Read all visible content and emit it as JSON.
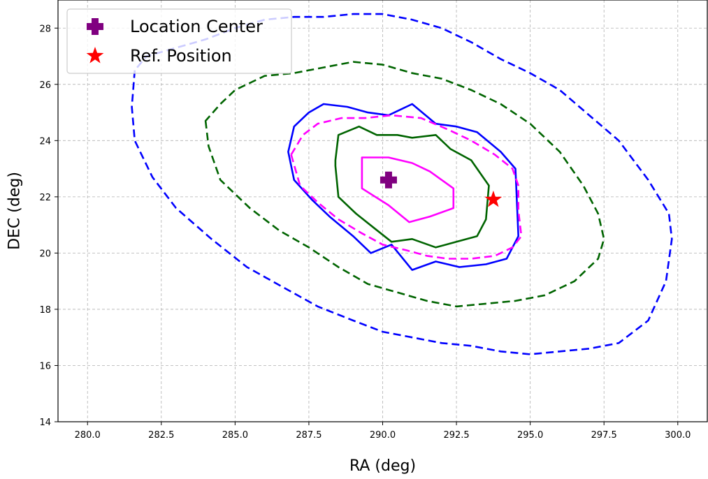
{
  "chart_data": {
    "type": "contour",
    "xlabel": "RA (deg)",
    "ylabel": "DEC (deg)",
    "xlim": [
      279.0,
      301.0
    ],
    "ylim": [
      14,
      29
    ],
    "x_ticks": [
      "280.0",
      "282.5",
      "285.0",
      "287.5",
      "290.0",
      "292.5",
      "295.0",
      "297.5",
      "300.0"
    ],
    "y_ticks": [
      "14",
      "16",
      "18",
      "20",
      "22",
      "24",
      "26",
      "28"
    ],
    "grid": true,
    "legend": {
      "placement": "top-left",
      "entries": [
        {
          "label": "Location Center",
          "marker": "plus",
          "color": "#800080"
        },
        {
          "label": "Ref. Position",
          "marker": "star",
          "color": "#ff0000"
        }
      ]
    },
    "points": [
      {
        "name": "location-center",
        "label": "Location Center",
        "marker": "plus",
        "color": "#800080",
        "x": 290.2,
        "y": 22.6
      },
      {
        "name": "ref-position",
        "label": "Ref. Position",
        "marker": "star",
        "color": "#ff0000",
        "x": 293.75,
        "y": 21.9
      }
    ],
    "contours": [
      {
        "name": "blue-dashed",
        "color": "#0000ff",
        "style": "dashed",
        "points": [
          [
            281.6,
            26.5
          ],
          [
            281.5,
            25.2
          ],
          [
            281.6,
            24.0
          ],
          [
            282.2,
            22.7
          ],
          [
            283.0,
            21.6
          ],
          [
            284.2,
            20.5
          ],
          [
            285.4,
            19.5
          ],
          [
            286.6,
            18.8
          ],
          [
            287.8,
            18.1
          ],
          [
            289.0,
            17.6
          ],
          [
            290.0,
            17.2
          ],
          [
            291.0,
            17.0
          ],
          [
            292.0,
            16.8
          ],
          [
            293.0,
            16.7
          ],
          [
            294.0,
            16.5
          ],
          [
            295.0,
            16.4
          ],
          [
            296.0,
            16.5
          ],
          [
            297.0,
            16.6
          ],
          [
            298.0,
            16.8
          ],
          [
            299.0,
            17.6
          ],
          [
            299.6,
            19.0
          ],
          [
            299.8,
            20.5
          ],
          [
            299.7,
            21.4
          ],
          [
            299.0,
            22.6
          ],
          [
            298.0,
            24.0
          ],
          [
            297.0,
            24.9
          ],
          [
            296.0,
            25.8
          ],
          [
            295.0,
            26.4
          ],
          [
            294.0,
            26.9
          ],
          [
            293.0,
            27.5
          ],
          [
            292.0,
            28.0
          ],
          [
            291.0,
            28.3
          ],
          [
            290.0,
            28.5
          ],
          [
            289.0,
            28.5
          ],
          [
            288.0,
            28.4
          ],
          [
            287.0,
            28.4
          ],
          [
            286.0,
            28.3
          ],
          [
            285.0,
            28.0
          ],
          [
            284.0,
            27.6
          ],
          [
            283.0,
            27.3
          ],
          [
            282.0,
            27.0
          ]
        ]
      },
      {
        "name": "green-dashed",
        "color": "#006400",
        "style": "dashed",
        "points": [
          [
            284.0,
            24.7
          ],
          [
            284.1,
            23.8
          ],
          [
            284.5,
            22.6
          ],
          [
            285.5,
            21.6
          ],
          [
            286.5,
            20.8
          ],
          [
            287.5,
            20.2
          ],
          [
            288.5,
            19.5
          ],
          [
            289.5,
            18.9
          ],
          [
            290.5,
            18.6
          ],
          [
            291.5,
            18.3
          ],
          [
            292.5,
            18.1
          ],
          [
            293.5,
            18.2
          ],
          [
            294.5,
            18.3
          ],
          [
            295.5,
            18.5
          ],
          [
            296.5,
            19.0
          ],
          [
            297.3,
            19.8
          ],
          [
            297.5,
            20.5
          ],
          [
            297.3,
            21.4
          ],
          [
            296.8,
            22.4
          ],
          [
            296.0,
            23.6
          ],
          [
            295.0,
            24.6
          ],
          [
            294.0,
            25.3
          ],
          [
            293.0,
            25.8
          ],
          [
            292.0,
            26.2
          ],
          [
            291.0,
            26.4
          ],
          [
            290.0,
            26.7
          ],
          [
            289.0,
            26.8
          ],
          [
            288.0,
            26.6
          ],
          [
            287.0,
            26.4
          ],
          [
            286.0,
            26.3
          ],
          [
            285.0,
            25.8
          ],
          [
            284.5,
            25.3
          ]
        ]
      },
      {
        "name": "blue-solid",
        "color": "#0000ff",
        "style": "solid",
        "points": [
          [
            286.8,
            23.6
          ],
          [
            287.0,
            22.6
          ],
          [
            287.6,
            21.9
          ],
          [
            288.2,
            21.3
          ],
          [
            289.0,
            20.6
          ],
          [
            289.6,
            20.0
          ],
          [
            290.3,
            20.3
          ],
          [
            291.0,
            19.4
          ],
          [
            291.8,
            19.7
          ],
          [
            292.6,
            19.5
          ],
          [
            293.5,
            19.6
          ],
          [
            294.2,
            19.8
          ],
          [
            294.6,
            20.6
          ],
          [
            294.5,
            23.0
          ],
          [
            294.0,
            23.6
          ],
          [
            293.2,
            24.3
          ],
          [
            292.5,
            24.5
          ],
          [
            291.8,
            24.6
          ],
          [
            291.0,
            25.3
          ],
          [
            290.2,
            24.9
          ],
          [
            289.5,
            25.0
          ],
          [
            288.8,
            25.2
          ],
          [
            288.0,
            25.3
          ],
          [
            287.5,
            25.0
          ],
          [
            287.0,
            24.5
          ]
        ]
      },
      {
        "name": "magenta-dashed",
        "color": "#ff00ff",
        "style": "dashed",
        "points": [
          [
            286.9,
            23.5
          ],
          [
            287.2,
            22.4
          ],
          [
            287.8,
            21.8
          ],
          [
            288.5,
            21.2
          ],
          [
            289.3,
            20.7
          ],
          [
            290.0,
            20.3
          ],
          [
            290.8,
            20.1
          ],
          [
            291.5,
            19.9
          ],
          [
            292.2,
            19.8
          ],
          [
            293.0,
            19.8
          ],
          [
            293.8,
            19.9
          ],
          [
            294.4,
            20.2
          ],
          [
            294.7,
            20.6
          ],
          [
            294.6,
            21.5
          ],
          [
            294.6,
            22.4
          ],
          [
            294.4,
            23.0
          ],
          [
            293.8,
            23.5
          ],
          [
            293.0,
            24.0
          ],
          [
            292.2,
            24.4
          ],
          [
            291.3,
            24.8
          ],
          [
            290.3,
            24.9
          ],
          [
            289.4,
            24.8
          ],
          [
            288.6,
            24.8
          ],
          [
            287.8,
            24.6
          ],
          [
            287.3,
            24.2
          ]
        ]
      },
      {
        "name": "green-solid",
        "color": "#006400",
        "style": "solid",
        "points": [
          [
            288.4,
            23.1
          ],
          [
            288.5,
            22.0
          ],
          [
            289.1,
            21.4
          ],
          [
            289.7,
            20.9
          ],
          [
            290.3,
            20.4
          ],
          [
            291.0,
            20.5
          ],
          [
            291.8,
            20.2
          ],
          [
            292.5,
            20.4
          ],
          [
            293.2,
            20.6
          ],
          [
            293.5,
            21.2
          ],
          [
            293.6,
            22.4
          ],
          [
            293.0,
            23.3
          ],
          [
            292.3,
            23.7
          ],
          [
            291.8,
            24.2
          ],
          [
            291.0,
            24.1
          ],
          [
            290.5,
            24.2
          ],
          [
            289.8,
            24.2
          ],
          [
            289.2,
            24.5
          ],
          [
            288.5,
            24.2
          ],
          [
            288.4,
            23.3
          ]
        ]
      },
      {
        "name": "magenta-solid",
        "color": "#ff00ff",
        "style": "solid",
        "points": [
          [
            289.3,
            23.4
          ],
          [
            289.3,
            22.3
          ],
          [
            290.2,
            21.7
          ],
          [
            290.9,
            21.1
          ],
          [
            291.6,
            21.3
          ],
          [
            292.4,
            21.6
          ],
          [
            292.4,
            22.3
          ],
          [
            291.6,
            22.9
          ],
          [
            291.0,
            23.2
          ],
          [
            290.2,
            23.4
          ],
          [
            289.3,
            23.4
          ]
        ]
      }
    ]
  }
}
